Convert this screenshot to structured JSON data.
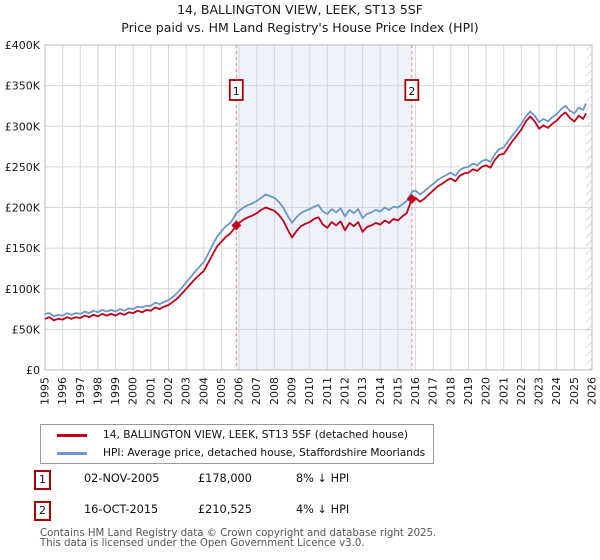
{
  "chart_data": {
    "type": "line",
    "title": "14, BALLINGTON VIEW, LEEK, ST13 5SF",
    "subtitle": "Price paid vs. HM Land Registry's House Price Index (HPI)",
    "x_range": [
      1995,
      2026
    ],
    "ylim": [
      0,
      400
    ],
    "y_unit": "GBP thousands",
    "grid": true,
    "x_tick_labels": [
      "1995",
      "1996",
      "1997",
      "1998",
      "1999",
      "2000",
      "2001",
      "2002",
      "2003",
      "2004",
      "2005",
      "2006",
      "2007",
      "2008",
      "2009",
      "2010",
      "2011",
      "2012",
      "2013",
      "2014",
      "2015",
      "2016",
      "2017",
      "2018",
      "2019",
      "2020",
      "2021",
      "2022",
      "2023",
      "2024",
      "2025",
      "2026"
    ],
    "y_ticks": [
      [
        0,
        "£0"
      ],
      [
        50,
        "£50K"
      ],
      [
        100,
        "£100K"
      ],
      [
        150,
        "£150K"
      ],
      [
        200,
        "£200K"
      ],
      [
        250,
        "£250K"
      ],
      [
        300,
        "£300K"
      ],
      [
        350,
        "£350K"
      ],
      [
        400,
        "£400K"
      ]
    ],
    "shaded_region": [
      2005.84,
      2015.79
    ],
    "hatch_region": [
      2025.66,
      2026
    ],
    "colors": {
      "property": "#c00018",
      "hpi": "#6d96cc",
      "dashed_line": "#f08080",
      "shade": "#eef2fa",
      "grid": "#d6d6d6",
      "plot_border": "#bbbbbb",
      "hatch": "#bbbbbb",
      "sale_box_border": "#a40000"
    },
    "series": [
      {
        "name": "14, BALLINGTON VIEW, LEEK, ST13 5SF (detached house)",
        "color": "#c00018",
        "points": [
          [
            1995.0,
            63
          ],
          [
            1995.25,
            65
          ],
          [
            1995.5,
            61
          ],
          [
            1995.75,
            63
          ],
          [
            1996.0,
            62
          ],
          [
            1996.25,
            65
          ],
          [
            1996.5,
            63
          ],
          [
            1996.75,
            65
          ],
          [
            1997.0,
            64
          ],
          [
            1997.25,
            67
          ],
          [
            1997.5,
            65
          ],
          [
            1997.75,
            68
          ],
          [
            1998.0,
            66
          ],
          [
            1998.25,
            69
          ],
          [
            1998.5,
            67
          ],
          [
            1998.75,
            69
          ],
          [
            1999.0,
            67
          ],
          [
            1999.25,
            70
          ],
          [
            1999.5,
            68
          ],
          [
            1999.75,
            71
          ],
          [
            2000.0,
            70
          ],
          [
            2000.25,
            73
          ],
          [
            2000.5,
            71
          ],
          [
            2000.75,
            74
          ],
          [
            2001.0,
            73
          ],
          [
            2001.25,
            77
          ],
          [
            2001.5,
            75
          ],
          [
            2001.75,
            78
          ],
          [
            2002.0,
            80
          ],
          [
            2002.25,
            84
          ],
          [
            2002.5,
            88
          ],
          [
            2002.75,
            94
          ],
          [
            2003.0,
            100
          ],
          [
            2003.25,
            106
          ],
          [
            2003.5,
            112
          ],
          [
            2003.75,
            117
          ],
          [
            2004.0,
            122
          ],
          [
            2004.25,
            132
          ],
          [
            2004.5,
            142
          ],
          [
            2004.75,
            152
          ],
          [
            2005.0,
            158
          ],
          [
            2005.25,
            164
          ],
          [
            2005.5,
            168
          ],
          [
            2005.75,
            175
          ],
          [
            2005.84,
            178
          ],
          [
            2006.0,
            181
          ],
          [
            2006.25,
            185
          ],
          [
            2006.5,
            188
          ],
          [
            2006.75,
            190
          ],
          [
            2007.0,
            193
          ],
          [
            2007.25,
            197
          ],
          [
            2007.5,
            200
          ],
          [
            2007.75,
            198
          ],
          [
            2008.0,
            196
          ],
          [
            2008.25,
            191
          ],
          [
            2008.5,
            184
          ],
          [
            2008.75,
            173
          ],
          [
            2009.0,
            163
          ],
          [
            2009.25,
            171
          ],
          [
            2009.5,
            177
          ],
          [
            2009.75,
            180
          ],
          [
            2010.0,
            182
          ],
          [
            2010.25,
            186
          ],
          [
            2010.5,
            188
          ],
          [
            2010.75,
            179
          ],
          [
            2011.0,
            175
          ],
          [
            2011.25,
            182
          ],
          [
            2011.5,
            178
          ],
          [
            2011.75,
            183
          ],
          [
            2012.0,
            172
          ],
          [
            2012.25,
            181
          ],
          [
            2012.5,
            177
          ],
          [
            2012.75,
            182
          ],
          [
            2013.0,
            170
          ],
          [
            2013.25,
            176
          ],
          [
            2013.5,
            178
          ],
          [
            2013.75,
            181
          ],
          [
            2014.0,
            179
          ],
          [
            2014.25,
            184
          ],
          [
            2014.5,
            181
          ],
          [
            2014.75,
            186
          ],
          [
            2015.0,
            184
          ],
          [
            2015.25,
            189
          ],
          [
            2015.5,
            193
          ],
          [
            2015.79,
            210.5
          ],
          [
            2016.0,
            212
          ],
          [
            2016.25,
            207
          ],
          [
            2016.5,
            211
          ],
          [
            2016.75,
            216
          ],
          [
            2017.0,
            221
          ],
          [
            2017.25,
            226
          ],
          [
            2017.5,
            229
          ],
          [
            2017.75,
            233
          ],
          [
            2018.0,
            236
          ],
          [
            2018.25,
            232
          ],
          [
            2018.5,
            239
          ],
          [
            2018.75,
            242
          ],
          [
            2019.0,
            243
          ],
          [
            2019.25,
            247
          ],
          [
            2019.5,
            245
          ],
          [
            2019.75,
            250
          ],
          [
            2020.0,
            252
          ],
          [
            2020.25,
            249
          ],
          [
            2020.5,
            259
          ],
          [
            2020.75,
            265
          ],
          [
            2021.0,
            266
          ],
          [
            2021.25,
            274
          ],
          [
            2021.5,
            282
          ],
          [
            2021.75,
            289
          ],
          [
            2022.0,
            296
          ],
          [
            2022.25,
            306
          ],
          [
            2022.5,
            312
          ],
          [
            2022.75,
            306
          ],
          [
            2023.0,
            297
          ],
          [
            2023.25,
            301
          ],
          [
            2023.5,
            298
          ],
          [
            2023.75,
            303
          ],
          [
            2024.0,
            307
          ],
          [
            2024.25,
            313
          ],
          [
            2024.5,
            317
          ],
          [
            2024.75,
            310
          ],
          [
            2025.0,
            306
          ],
          [
            2025.25,
            313
          ],
          [
            2025.5,
            309
          ],
          [
            2025.66,
            316
          ]
        ]
      },
      {
        "name": "HPI: Average price, detached house, Staffordshire Moorlands",
        "color": "#6d96cc",
        "points": [
          [
            1995.0,
            69
          ],
          [
            1995.25,
            70
          ],
          [
            1995.5,
            66
          ],
          [
            1995.75,
            68
          ],
          [
            1996.0,
            67
          ],
          [
            1996.25,
            70
          ],
          [
            1996.5,
            68
          ],
          [
            1996.75,
            70
          ],
          [
            1997.0,
            69
          ],
          [
            1997.25,
            72
          ],
          [
            1997.5,
            70
          ],
          [
            1997.75,
            73
          ],
          [
            1998.0,
            71
          ],
          [
            1998.25,
            74
          ],
          [
            1998.5,
            72
          ],
          [
            1998.75,
            74
          ],
          [
            1999.0,
            72
          ],
          [
            1999.25,
            75
          ],
          [
            1999.5,
            73
          ],
          [
            1999.75,
            76
          ],
          [
            2000.0,
            75
          ],
          [
            2000.25,
            78
          ],
          [
            2000.5,
            77
          ],
          [
            2000.75,
            79
          ],
          [
            2001.0,
            79
          ],
          [
            2001.25,
            83
          ],
          [
            2001.5,
            81
          ],
          [
            2001.75,
            84
          ],
          [
            2002.0,
            86
          ],
          [
            2002.25,
            90
          ],
          [
            2002.5,
            95
          ],
          [
            2002.75,
            101
          ],
          [
            2003.0,
            108
          ],
          [
            2003.25,
            114
          ],
          [
            2003.5,
            121
          ],
          [
            2003.75,
            127
          ],
          [
            2004.0,
            133
          ],
          [
            2004.25,
            143
          ],
          [
            2004.5,
            154
          ],
          [
            2004.75,
            164
          ],
          [
            2005.0,
            171
          ],
          [
            2005.25,
            177
          ],
          [
            2005.5,
            181
          ],
          [
            2005.75,
            189
          ],
          [
            2005.84,
            193
          ],
          [
            2006.0,
            196
          ],
          [
            2006.25,
            200
          ],
          [
            2006.5,
            203
          ],
          [
            2006.75,
            205
          ],
          [
            2007.0,
            208
          ],
          [
            2007.25,
            212
          ],
          [
            2007.5,
            216
          ],
          [
            2007.75,
            214
          ],
          [
            2008.0,
            212
          ],
          [
            2008.25,
            207
          ],
          [
            2008.5,
            200
          ],
          [
            2008.75,
            190
          ],
          [
            2009.0,
            181
          ],
          [
            2009.25,
            188
          ],
          [
            2009.5,
            193
          ],
          [
            2009.75,
            196
          ],
          [
            2010.0,
            198
          ],
          [
            2010.25,
            201
          ],
          [
            2010.5,
            203
          ],
          [
            2010.75,
            195
          ],
          [
            2011.0,
            192
          ],
          [
            2011.25,
            198
          ],
          [
            2011.5,
            194
          ],
          [
            2011.75,
            199
          ],
          [
            2012.0,
            189
          ],
          [
            2012.25,
            197
          ],
          [
            2012.5,
            193
          ],
          [
            2012.75,
            198
          ],
          [
            2013.0,
            187
          ],
          [
            2013.25,
            192
          ],
          [
            2013.5,
            194
          ],
          [
            2013.75,
            197
          ],
          [
            2014.0,
            195
          ],
          [
            2014.25,
            200
          ],
          [
            2014.5,
            197
          ],
          [
            2014.75,
            201
          ],
          [
            2015.0,
            200
          ],
          [
            2015.25,
            204
          ],
          [
            2015.5,
            208
          ],
          [
            2015.79,
            219
          ],
          [
            2016.0,
            221
          ],
          [
            2016.25,
            216
          ],
          [
            2016.5,
            220
          ],
          [
            2016.75,
            225
          ],
          [
            2017.0,
            229
          ],
          [
            2017.25,
            234
          ],
          [
            2017.5,
            237
          ],
          [
            2017.75,
            240
          ],
          [
            2018.0,
            243
          ],
          [
            2018.25,
            239
          ],
          [
            2018.5,
            246
          ],
          [
            2018.75,
            249
          ],
          [
            2019.0,
            250
          ],
          [
            2019.25,
            254
          ],
          [
            2019.5,
            252
          ],
          [
            2019.75,
            257
          ],
          [
            2020.0,
            259
          ],
          [
            2020.25,
            256
          ],
          [
            2020.5,
            266
          ],
          [
            2020.75,
            272
          ],
          [
            2021.0,
            274
          ],
          [
            2021.25,
            282
          ],
          [
            2021.5,
            289
          ],
          [
            2021.75,
            296
          ],
          [
            2022.0,
            303
          ],
          [
            2022.25,
            312
          ],
          [
            2022.5,
            318
          ],
          [
            2022.75,
            313
          ],
          [
            2023.0,
            305
          ],
          [
            2023.25,
            309
          ],
          [
            2023.5,
            306
          ],
          [
            2023.75,
            311
          ],
          [
            2024.0,
            315
          ],
          [
            2024.25,
            321
          ],
          [
            2024.5,
            325
          ],
          [
            2024.75,
            319
          ],
          [
            2025.0,
            316
          ],
          [
            2025.25,
            323
          ],
          [
            2025.5,
            320
          ],
          [
            2025.66,
            328
          ]
        ]
      }
    ],
    "sales": [
      {
        "label": "1",
        "x": 2005.84,
        "price_k": 178,
        "date": "02-NOV-2005",
        "price": "£178,000",
        "note": "8% ↓ HPI"
      },
      {
        "label": "2",
        "x": 2015.79,
        "price_k": 210.5,
        "date": "16-OCT-2015",
        "price": "£210,525",
        "note": "4% ↓ HPI"
      }
    ]
  },
  "footer": {
    "line1": "Contains HM Land Registry data © Crown copyright and database right 2025.",
    "line2": "This data is licensed under the Open Government Licence v3.0."
  }
}
